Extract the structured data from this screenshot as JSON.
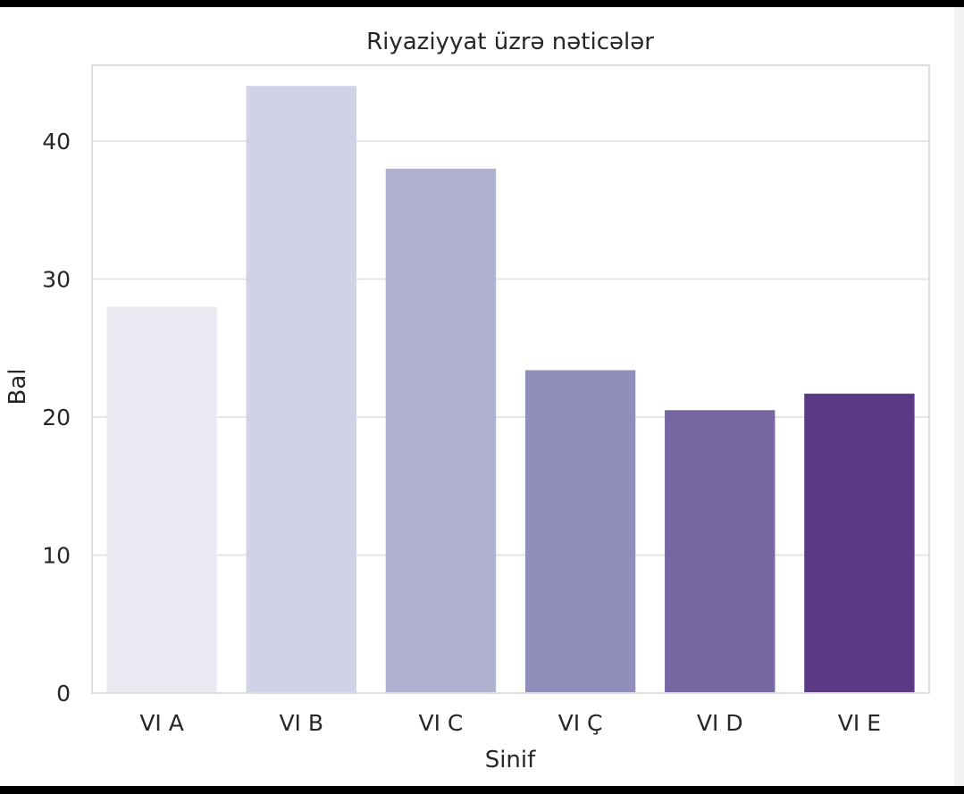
{
  "chart_data": {
    "type": "bar",
    "title": "Riyaziyyat üzrə nəticələr",
    "xlabel": "Sinif",
    "ylabel": "Bal",
    "categories": [
      "VI A",
      "VI B",
      "VI C",
      "VI Ç",
      "VI D",
      "VI E"
    ],
    "values": [
      28,
      44,
      38,
      23.4,
      20.5,
      21.7
    ],
    "ylim": [
      0,
      45.5
    ],
    "yticks": [
      "0",
      "10",
      "20",
      "30",
      "40"
    ],
    "grid": true,
    "colors": [
      "#ebe9f2",
      "#d1d2e6",
      "#b0b0cf",
      "#918fba",
      "#7667a3",
      "#5a3985"
    ]
  }
}
